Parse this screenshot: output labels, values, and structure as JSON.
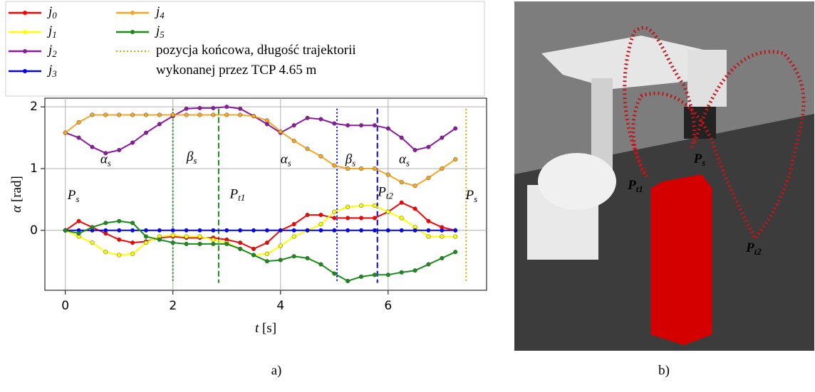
{
  "chart_data": {
    "type": "line",
    "xlabel": "t [s]",
    "ylabel": "α [rad]",
    "panel_label": "a)",
    "x": [
      0,
      0.25,
      0.5,
      0.75,
      1,
      1.25,
      1.5,
      1.75,
      2,
      2.25,
      2.5,
      2.75,
      3,
      3.25,
      3.5,
      3.75,
      4,
      4.25,
      4.5,
      4.75,
      5,
      5.25,
      5.5,
      5.75,
      6,
      6.25,
      6.5,
      6.75,
      7,
      7.25
    ],
    "series": [
      {
        "name": "j0",
        "color": "#ff0000",
        "values": [
          0,
          0.15,
          0.05,
          -0.05,
          -0.15,
          -0.2,
          -0.18,
          -0.12,
          -0.1,
          -0.12,
          -0.12,
          -0.12,
          -0.15,
          -0.2,
          -0.3,
          -0.2,
          0,
          0.1,
          0.25,
          0.25,
          0.2,
          0.2,
          0.2,
          0.2,
          0.3,
          0.45,
          0.35,
          0.15,
          0.05,
          0
        ]
      },
      {
        "name": "j1",
        "color": "#ffff00",
        "values": [
          0,
          -0.1,
          -0.2,
          -0.35,
          -0.4,
          -0.38,
          -0.2,
          -0.1,
          -0.08,
          -0.1,
          -0.1,
          -0.15,
          -0.2,
          -0.3,
          -0.4,
          -0.38,
          -0.25,
          -0.1,
          0,
          0.1,
          0.3,
          0.38,
          0.4,
          0.4,
          0.3,
          0.2,
          0.05,
          -0.1,
          -0.1,
          -0.1
        ]
      },
      {
        "name": "j2",
        "color": "#8b1a9e",
        "values": [
          1.58,
          1.5,
          1.35,
          1.25,
          1.3,
          1.42,
          1.58,
          1.72,
          1.85,
          1.97,
          1.98,
          1.98,
          2.0,
          1.97,
          1.85,
          1.72,
          1.58,
          1.7,
          1.82,
          1.8,
          1.73,
          1.7,
          1.7,
          1.7,
          1.65,
          1.5,
          1.3,
          1.35,
          1.5,
          1.65
        ]
      },
      {
        "name": "j3",
        "color": "#0000ff",
        "values": [
          0,
          0,
          0,
          0,
          0,
          0,
          0,
          0,
          0,
          0,
          0,
          0,
          0,
          0,
          0,
          0,
          0,
          0,
          0,
          0,
          0,
          0,
          0,
          0,
          0,
          0,
          0,
          0,
          0,
          0
        ]
      },
      {
        "name": "j4",
        "color": "#f5a623",
        "values": [
          1.58,
          1.75,
          1.87,
          1.87,
          1.87,
          1.87,
          1.87,
          1.87,
          1.87,
          1.87,
          1.87,
          1.87,
          1.87,
          1.87,
          1.85,
          1.78,
          1.6,
          1.45,
          1.32,
          1.2,
          1.05,
          1.0,
          1.0,
          1.0,
          0.9,
          0.78,
          0.72,
          0.85,
          1.0,
          1.15
        ]
      },
      {
        "name": "j5",
        "color": "#1a8c1a",
        "values": [
          0,
          -0.05,
          0.05,
          0.12,
          0.15,
          0.12,
          -0.1,
          -0.15,
          -0.2,
          -0.22,
          -0.22,
          -0.22,
          -0.22,
          -0.3,
          -0.4,
          -0.5,
          -0.48,
          -0.42,
          -0.45,
          -0.55,
          -0.7,
          -0.82,
          -0.75,
          -0.72,
          -0.72,
          -0.68,
          -0.65,
          -0.55,
          -0.45,
          -0.35
        ]
      }
    ],
    "vlines": [
      {
        "x": 2,
        "color": "#1a8c1a",
        "style": "dotted"
      },
      {
        "x": 2.85,
        "color": "#1a8c1a",
        "style": "dashed"
      },
      {
        "x": 5.05,
        "color": "#0000ff",
        "style": "dotted"
      },
      {
        "x": 5.8,
        "color": "#0000ff",
        "style": "dashed"
      },
      {
        "x": 7.45,
        "color": "#c8a800",
        "style": "dotted",
        "name": "pozycja końcowa, długość trajektorii\nwykonanej przez TCP 4.65 m"
      }
    ],
    "annotations": [
      {
        "text": "αs",
        "x": 0.75,
        "y": 1.13
      },
      {
        "text": "βs",
        "x": 2.35,
        "y": 1.17
      },
      {
        "text": "αs",
        "x": 4.1,
        "y": 1.13
      },
      {
        "text": "βs",
        "x": 5.3,
        "y": 1.13
      },
      {
        "text": "αs",
        "x": 6.3,
        "y": 1.13
      },
      {
        "text": "Ps",
        "x": 0.15,
        "y": 0.55
      },
      {
        "text": "Pt1",
        "x": 3.2,
        "y": 0.57
      },
      {
        "text": "Pt2",
        "x": 5.95,
        "y": 0.6
      },
      {
        "text": "Ps",
        "x": 7.55,
        "y": 0.55
      }
    ],
    "xlim": [
      -0.38,
      7.83
    ],
    "ylim": [
      -0.97,
      2.14
    ],
    "xticks": [
      0,
      2,
      4,
      6
    ],
    "yticks": [
      0,
      1,
      2
    ],
    "grid": true
  },
  "render": {
    "panel_label": "b)",
    "labels": [
      "Pt1",
      "Ps",
      "Pt2"
    ]
  }
}
